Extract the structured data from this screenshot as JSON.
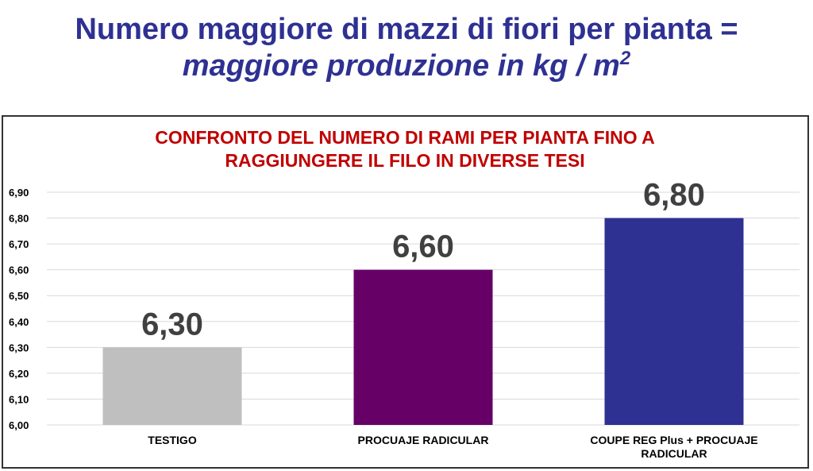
{
  "headline": {
    "line1": "Numero maggiore di mazzi di fiori per pianta =",
    "line2": "maggiore produzione in kg / m",
    "line2_sup": "2"
  },
  "chart_data": {
    "type": "bar",
    "title_lines": [
      "CONFRONTO DEL NUMERO DI RAMI PER PIANTA FINO A",
      "RAGGIUNGERE IL FILO IN DIVERSE TESI"
    ],
    "categories": [
      [
        "TESTIGO"
      ],
      [
        "PROCUAJE RADICULAR"
      ],
      [
        "COUPE REG Plus + PROCUAJE",
        "RADICULAR"
      ]
    ],
    "values": [
      6.3,
      6.6,
      6.8
    ],
    "value_labels": [
      "6,30",
      "6,60",
      "6,80"
    ],
    "bar_colors": [
      "#bfbfbf",
      "#660066",
      "#2e3192"
    ],
    "ylim": [
      6.0,
      6.9
    ],
    "yticks": [
      6.0,
      6.1,
      6.2,
      6.3,
      6.4,
      6.5,
      6.6,
      6.7,
      6.8,
      6.9
    ],
    "ytick_labels": [
      "6,00",
      "6,10",
      "6,20",
      "6,30",
      "6,40",
      "6,50",
      "6,60",
      "6,70",
      "6,80",
      "6,90"
    ],
    "grid": true,
    "xlabel": "",
    "ylabel": ""
  }
}
